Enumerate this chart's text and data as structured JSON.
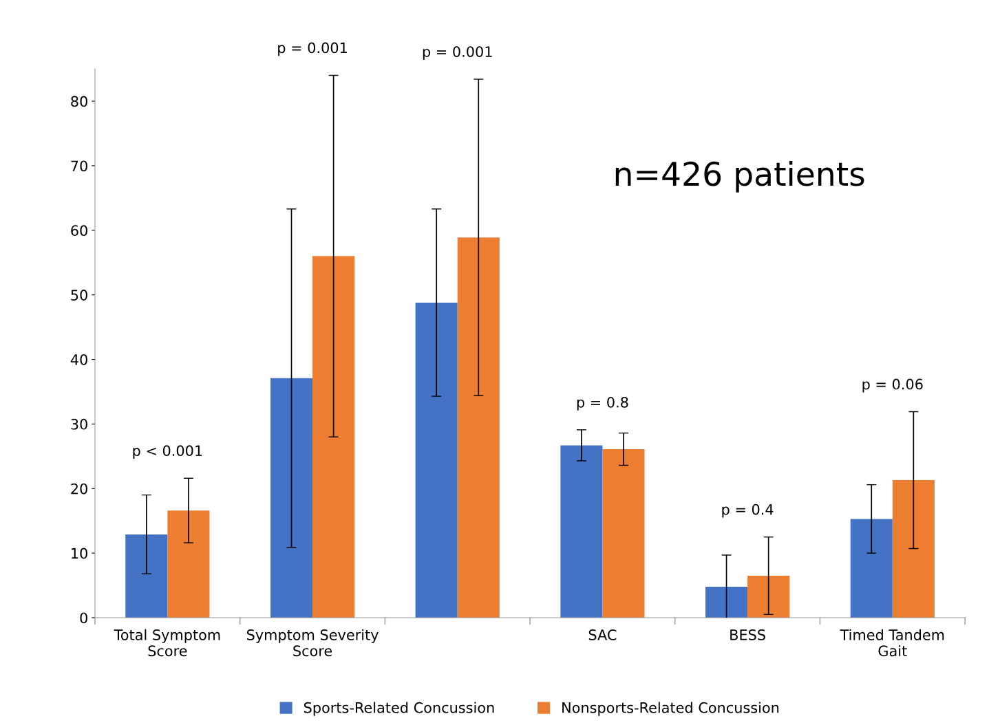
{
  "chart_data": {
    "type": "bar",
    "categories": [
      "Total Symptom\nScore",
      "Symptom Severity\nScore",
      null,
      "SAC",
      "BESS",
      "Timed Tandem\nGait"
    ],
    "series": [
      {
        "name": "Sports-Related Concussion",
        "color": "#4472c4",
        "values": [
          12.9,
          37.1,
          48.8,
          26.7,
          4.8,
          15.3
        ],
        "errors": [
          6.1,
          26.2,
          14.5,
          2.4,
          4.9,
          5.3
        ]
      },
      {
        "name": "Nonsports-Related Concussion",
        "color": "#ed7d31",
        "values": [
          16.6,
          56.0,
          58.9,
          26.1,
          6.5,
          21.3
        ],
        "errors": [
          5.0,
          28.0,
          24.5,
          2.5,
          6.0,
          10.6
        ]
      }
    ],
    "ylim": [
      0,
      85
    ],
    "yticks": [
      0,
      10,
      20,
      30,
      40,
      50,
      60,
      70,
      80
    ],
    "annotations": [
      "p < 0.001",
      "p = 0.001",
      "p = 0.001",
      "p = 0.8",
      "p = 0.4",
      "p = 0.06",
      "n=426 patients"
    ],
    "grid": false,
    "legend": "bottom"
  }
}
